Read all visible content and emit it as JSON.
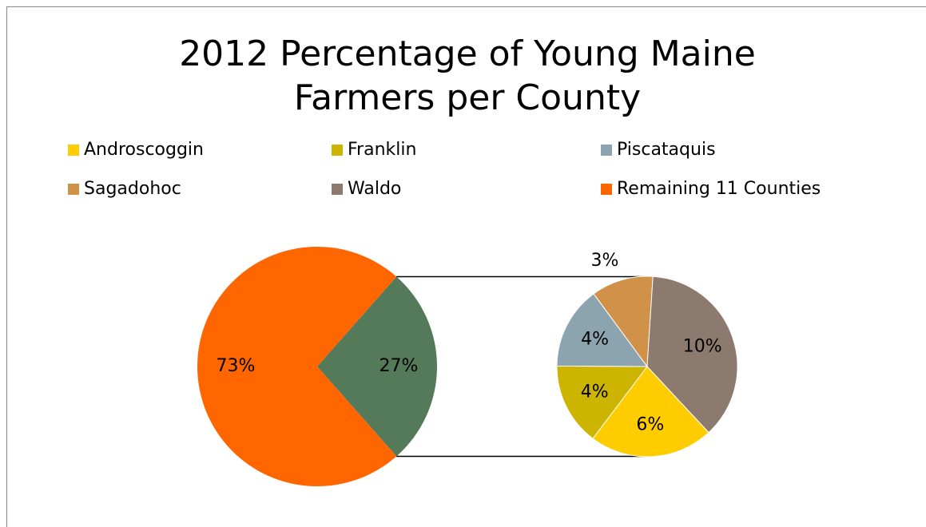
{
  "chart_data": {
    "type": "pie_of_pie",
    "title": [
      "2012 Percentage of Young Maine",
      "Farmers per County"
    ],
    "slices": [
      {
        "name": "Androscoggin",
        "value": 6,
        "value_label": "6%",
        "color": "#ffcc00"
      },
      {
        "name": "Franklin",
        "value": 4,
        "value_label": "4%",
        "color": "#ccb400"
      },
      {
        "name": "Piscataquis",
        "value": 4,
        "value_label": "4%",
        "color": "#8ba4b0"
      },
      {
        "name": "Sagadohoc",
        "value": 3,
        "value_label": "3%",
        "color": "#d09148"
      },
      {
        "name": "Waldo",
        "value": 10,
        "value_label": "10%",
        "color": "#8c7a6e"
      }
    ],
    "remaining": {
      "name": "Remaining 11 Counties",
      "value": 73,
      "value_label": "73%",
      "color": "#ff6600"
    },
    "combined": {
      "value": 27,
      "value_label": "27%",
      "color": "#547a5a"
    },
    "legend": "top"
  }
}
